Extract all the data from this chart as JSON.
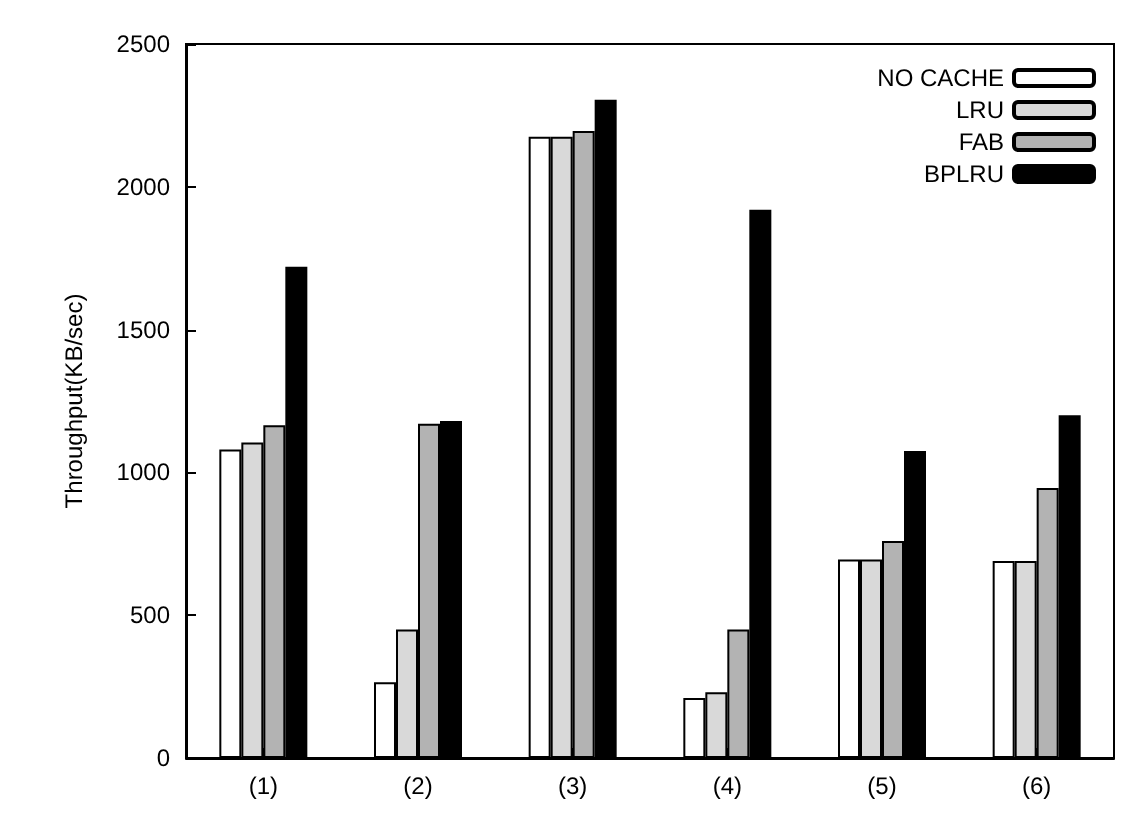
{
  "chart_data": {
    "type": "bar",
    "ylabel": "Throughput(KB/sec)",
    "categories": [
      "(1)",
      "(2)",
      "(3)",
      "(4)",
      "(5)",
      "(6)"
    ],
    "series": [
      {
        "name": "NO CACHE",
        "color": "#ffffff",
        "values": [
          1080,
          265,
          2175,
          210,
          695,
          690
        ]
      },
      {
        "name": "LRU",
        "color": "#d9d9d9",
        "values": [
          1105,
          450,
          2175,
          230,
          695,
          690
        ]
      },
      {
        "name": "FAB",
        "color": "#b3b3b3",
        "values": [
          1165,
          1170,
          2195,
          450,
          760,
          945
        ]
      },
      {
        "name": "BPLRU",
        "color": "#000000",
        "values": [
          1720,
          1180,
          2305,
          1920,
          1075,
          1200
        ]
      }
    ],
    "ylim": [
      0,
      2500
    ],
    "yticks": [
      0,
      500,
      1000,
      1500,
      2000,
      2500
    ],
    "grid": false,
    "legend": "top right"
  }
}
